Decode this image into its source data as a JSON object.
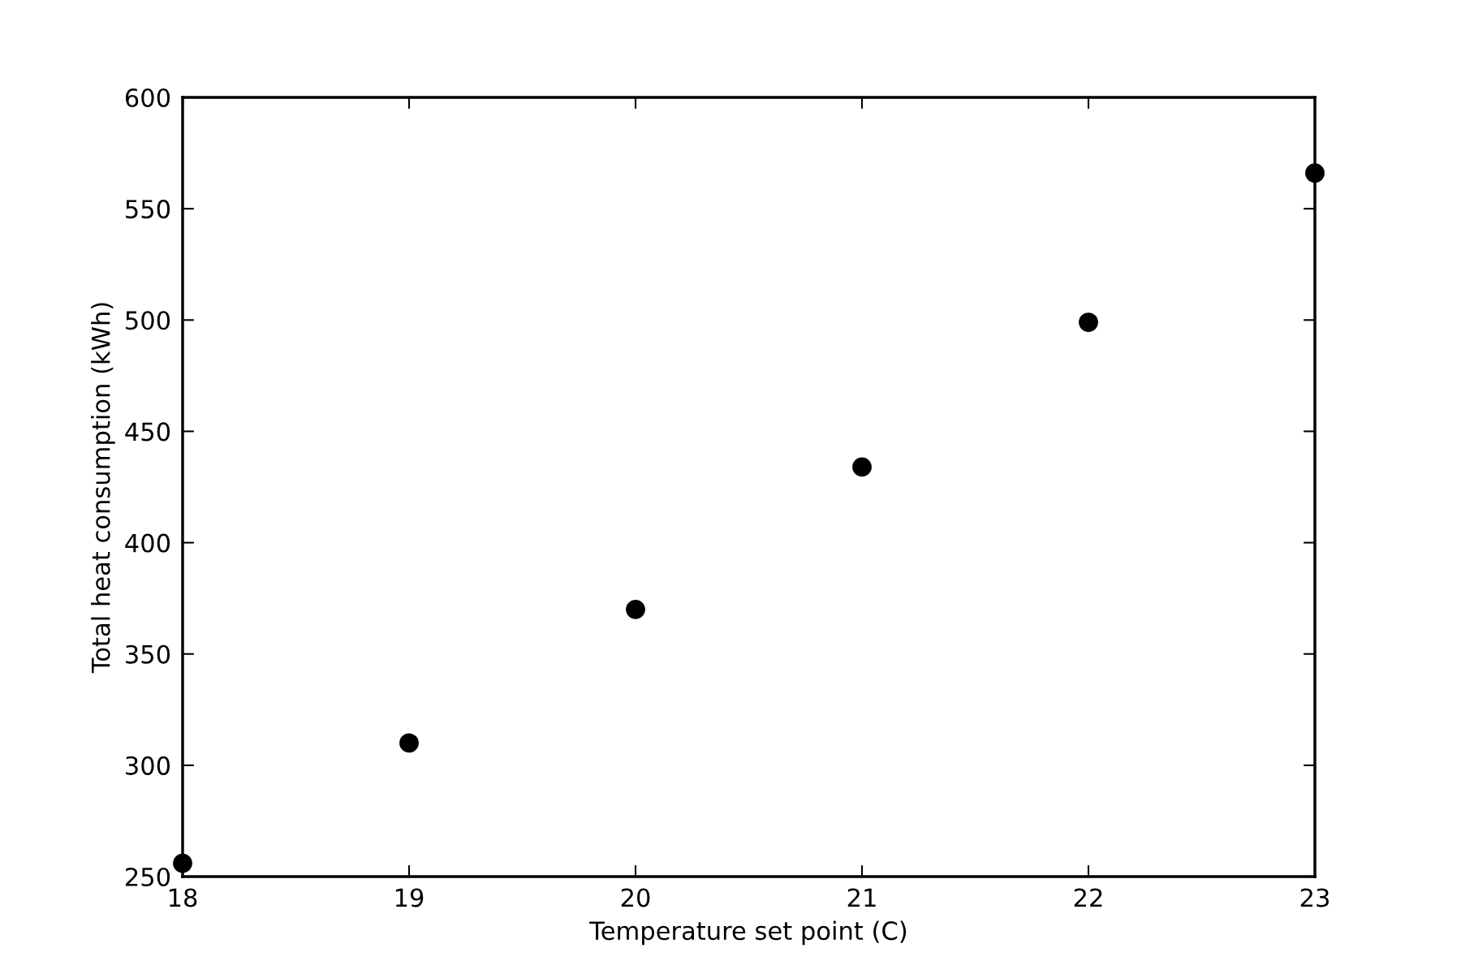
{
  "chart_data": {
    "type": "scatter",
    "xlabel": "Temperature set point (C)",
    "ylabel": "Total heat consumption (kWh)",
    "x": [
      18,
      19,
      20,
      21,
      22,
      23
    ],
    "series": [
      {
        "color": "#000000",
        "values": [
          256,
          310,
          370,
          434,
          499,
          566
        ]
      }
    ],
    "xlim": [
      18,
      23
    ],
    "xticks": [
      18,
      19,
      20,
      21,
      22,
      23
    ],
    "ylim": [
      250,
      600
    ],
    "yticks": [
      250,
      300,
      350,
      400,
      450,
      500,
      550,
      600
    ],
    "marker": "circle",
    "grid": false,
    "legend": false
  }
}
